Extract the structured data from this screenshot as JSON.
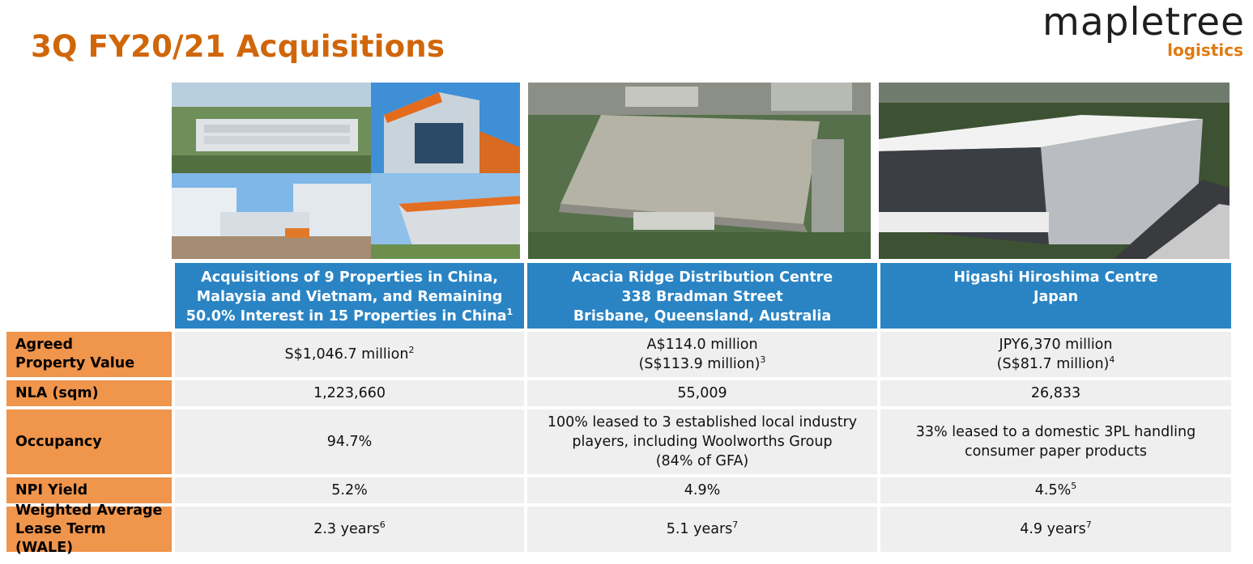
{
  "title": "3Q FY20/21 Acquisitions",
  "logo": {
    "main": "mapletree",
    "sub": "logistics"
  },
  "columns": [
    {
      "header": [
        "Acquisitions of 9 Properties in China,",
        "Malaysia and Vietnam, and Remaining",
        "50.0% Interest in 15 Properties in China"
      ],
      "header_note": "1",
      "photo": "china-malaysia-vietnam-warehouses-collage"
    },
    {
      "header": [
        "Acacia Ridge Distribution Centre",
        "338 Bradman Street",
        "Brisbane, Queensland, Australia"
      ],
      "header_note": "",
      "photo": "acacia-ridge-aerial"
    },
    {
      "header": [
        "Higashi Hiroshima Centre",
        "Japan"
      ],
      "header_note": "",
      "photo": "higashi-hiroshima-warehouse"
    }
  ],
  "rows": [
    {
      "label": "Agreed Property Value",
      "cells": [
        {
          "lines": [
            "S$1,046.7 million"
          ],
          "note": "2"
        },
        {
          "lines": [
            "A$114.0 million",
            "(S$113.9 million)"
          ],
          "note": "3"
        },
        {
          "lines": [
            "JPY6,370 million",
            "(S$81.7 million)"
          ],
          "note": "4"
        }
      ]
    },
    {
      "label": "NLA (sqm)",
      "cells": [
        {
          "lines": [
            "1,223,660"
          ],
          "note": ""
        },
        {
          "lines": [
            "55,009"
          ],
          "note": ""
        },
        {
          "lines": [
            "26,833"
          ],
          "note": ""
        }
      ]
    },
    {
      "label": "Occupancy",
      "cells": [
        {
          "lines": [
            "94.7%"
          ],
          "note": ""
        },
        {
          "lines": [
            "100% leased to 3 established local industry",
            "players, including Woolworths Group",
            "(84% of GFA)"
          ],
          "note": ""
        },
        {
          "lines": [
            "33% leased to a domestic 3PL handling",
            "consumer paper products"
          ],
          "note": ""
        }
      ]
    },
    {
      "label": "NPI Yield",
      "cells": [
        {
          "lines": [
            "5.2%"
          ],
          "note": ""
        },
        {
          "lines": [
            "4.9%"
          ],
          "note": ""
        },
        {
          "lines": [
            "4.5%"
          ],
          "note": "5"
        }
      ]
    },
    {
      "label": "Weighted Average Lease Term (WALE)",
      "cells": [
        {
          "lines": [
            "2.3 years"
          ],
          "note": "6"
        },
        {
          "lines": [
            "5.1 years"
          ],
          "note": "7"
        },
        {
          "lines": [
            "4.9 years"
          ],
          "note": "7"
        }
      ]
    }
  ],
  "colors": {
    "title": "#d0660a",
    "header_bg": "#2a84c4",
    "label_bg": "#f0954c",
    "cell_bg": "#efefef"
  }
}
